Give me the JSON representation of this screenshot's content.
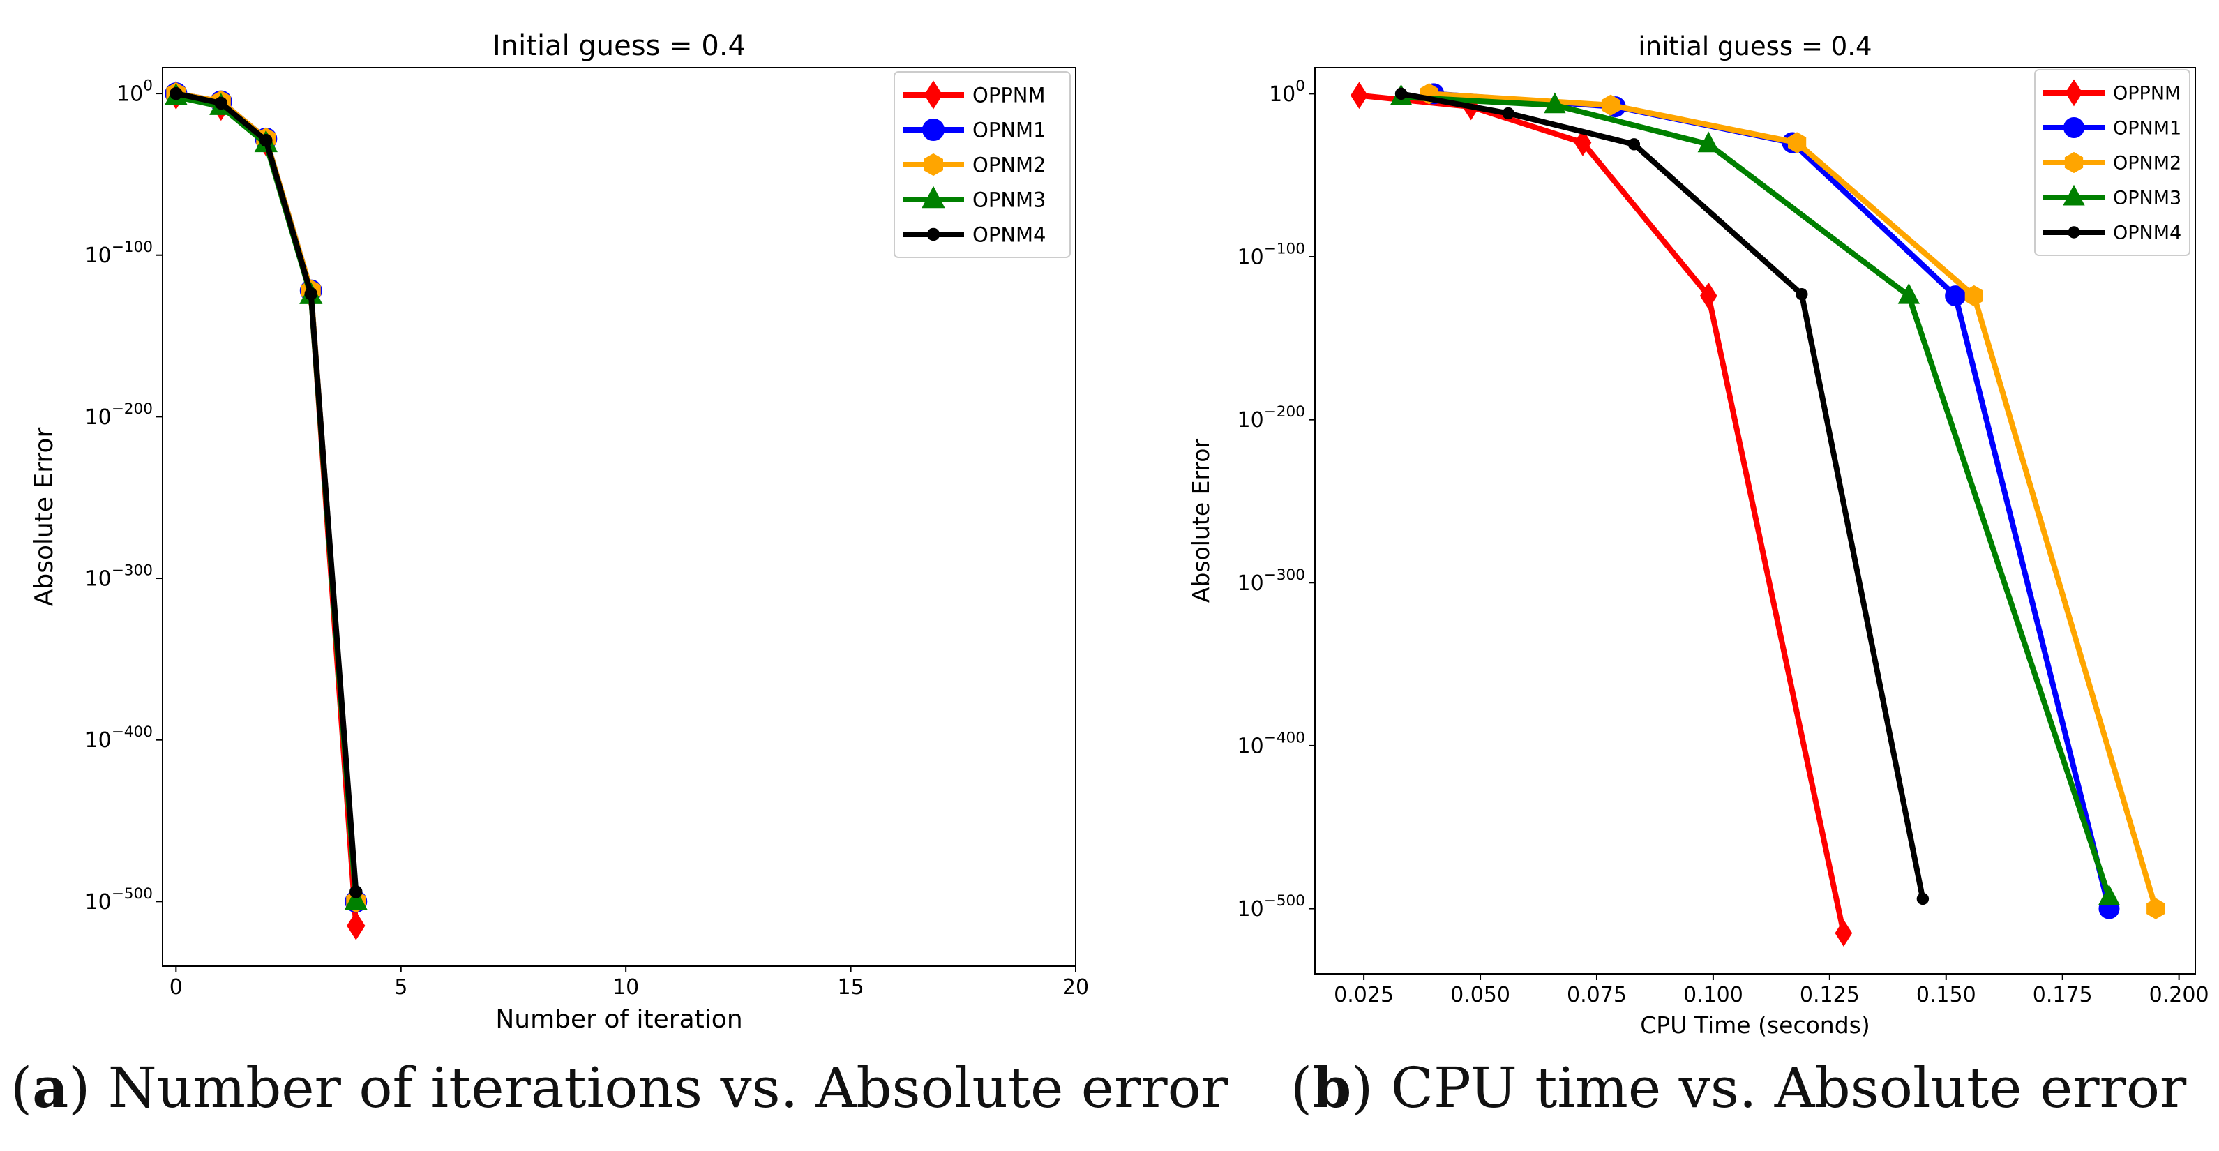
{
  "captions": [
    {
      "letter": "a",
      "text": "Number of iterations vs. Absolute error"
    },
    {
      "letter": "b",
      "text": "CPU time vs. Absolute error"
    }
  ],
  "chart_data": [
    {
      "type": "line",
      "title": "Initial guess = 0.4",
      "xlabel": "Number of iteration",
      "ylabel": "Absolute Error",
      "y_scale": "log",
      "xlim": [
        -0.3,
        20
      ],
      "ylim_exp": [
        -540,
        16
      ],
      "xticks": [
        "0",
        "5",
        "10",
        "15",
        "20"
      ],
      "xtick_values": [
        0,
        5,
        10,
        15,
        20
      ],
      "yticks_exp": [
        0,
        -100,
        -200,
        -300,
        -400,
        -500
      ],
      "ytick_labels": [
        "10^0",
        "10^-100",
        "10^-200",
        "10^-300",
        "10^-400",
        "10^-500"
      ],
      "legend_position": "top-right",
      "series": [
        {
          "name": "OPPNM",
          "color": "#ff0000",
          "marker": "diamond",
          "x": [
            0,
            1,
            2,
            3,
            4
          ],
          "log10_y": [
            -1,
            -8,
            -30,
            -124,
            -515
          ]
        },
        {
          "name": "OPNM1",
          "color": "#0000ff",
          "marker": "circle",
          "x": [
            0,
            1,
            2,
            3,
            4
          ],
          "log10_y": [
            0,
            -5,
            -28,
            -122,
            -500
          ]
        },
        {
          "name": "OPNM2",
          "color": "#ffa500",
          "marker": "hexagon",
          "x": [
            0,
            1,
            2,
            3,
            4
          ],
          "log10_y": [
            0,
            -5,
            -28,
            -122,
            -500
          ]
        },
        {
          "name": "OPNM3",
          "color": "#008000",
          "marker": "triangle",
          "x": [
            0,
            1,
            2,
            3,
            4
          ],
          "log10_y": [
            -2,
            -8,
            -31,
            -125,
            -500
          ]
        },
        {
          "name": "OPNM4",
          "color": "#000000",
          "marker": "dot",
          "x": [
            0,
            1,
            2,
            3,
            4
          ],
          "log10_y": [
            0,
            -6,
            -29,
            -124,
            -494
          ]
        }
      ]
    },
    {
      "type": "line",
      "title": "initial guess = 0.4",
      "xlabel": "CPU Time (seconds)",
      "ylabel": "Absolute Error",
      "y_scale": "log",
      "xlim": [
        0.0145,
        0.2035
      ],
      "ylim_exp": [
        -540,
        16
      ],
      "xticks": [
        "0.025",
        "0.050",
        "0.075",
        "0.100",
        "0.125",
        "0.150",
        "0.175",
        "0.200"
      ],
      "xtick_values": [
        0.025,
        0.05,
        0.075,
        0.1,
        0.125,
        0.15,
        0.175,
        0.2
      ],
      "yticks_exp": [
        0,
        -100,
        -200,
        -300,
        -400,
        -500
      ],
      "ytick_labels": [
        "10^0",
        "10^-100",
        "10^-200",
        "10^-300",
        "10^-400",
        "10^-500"
      ],
      "legend_position": "top-right",
      "series": [
        {
          "name": "OPPNM",
          "color": "#ff0000",
          "marker": "diamond",
          "x": [
            0.024,
            0.048,
            0.072,
            0.099,
            0.128
          ],
          "log10_y": [
            -1,
            -8,
            -30,
            -124,
            -515
          ]
        },
        {
          "name": "OPNM1",
          "color": "#0000ff",
          "marker": "circle",
          "x": [
            0.04,
            0.079,
            0.117,
            0.152,
            0.185
          ],
          "log10_y": [
            0,
            -8,
            -30,
            -124,
            -500
          ]
        },
        {
          "name": "OPNM2",
          "color": "#ffa500",
          "marker": "hexagon",
          "x": [
            0.039,
            0.078,
            0.118,
            0.156,
            0.195
          ],
          "log10_y": [
            0,
            -7,
            -30,
            -124,
            -500
          ]
        },
        {
          "name": "OPNM3",
          "color": "#008000",
          "marker": "triangle",
          "x": [
            0.033,
            0.066,
            0.099,
            0.142,
            0.185
          ],
          "log10_y": [
            -2,
            -7,
            -31,
            -124,
            -493
          ]
        },
        {
          "name": "OPNM4",
          "color": "#000000",
          "marker": "dot",
          "x": [
            0.033,
            0.056,
            0.083,
            0.119,
            0.145
          ],
          "log10_y": [
            0,
            -12,
            -31,
            -123,
            -494
          ]
        }
      ]
    }
  ]
}
